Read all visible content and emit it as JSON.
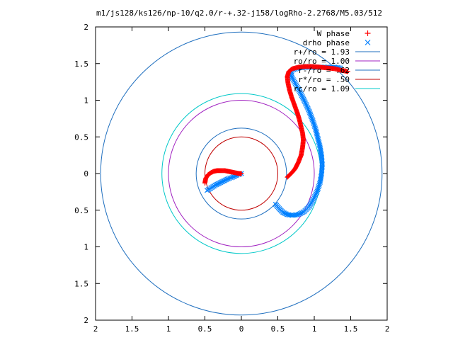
{
  "chart_data": {
    "type": "scatter",
    "title": "m1/js128/ks126/np-10/q2.0/r-+.32-j158/logRho-2.2768/M5.03/512",
    "xlim": [
      -2,
      2
    ],
    "ylim": [
      -2,
      2
    ],
    "x_tick_labels": [
      "2",
      "1.5",
      "1",
      "0.5",
      "0",
      "0.5",
      "1",
      "1.5",
      "2"
    ],
    "y_tick_labels": [
      "2",
      "1.5",
      "1",
      "0.5",
      "0",
      "0.5",
      "1",
      "1.5",
      "2"
    ],
    "grid": false,
    "legend_position": "top-right",
    "series": [
      {
        "name": "W phase",
        "marker": "+",
        "color": "#ff0000",
        "points": [
          [
            -0.5,
            -0.13
          ],
          [
            -0.49,
            -0.07
          ],
          [
            -0.46,
            -0.02
          ],
          [
            -0.42,
            0.01
          ],
          [
            -0.38,
            0.03
          ],
          [
            -0.33,
            0.04
          ],
          [
            -0.28,
            0.04
          ],
          [
            -0.23,
            0.04
          ],
          [
            -0.18,
            0.03
          ],
          [
            -0.13,
            0.02
          ],
          [
            -0.08,
            0.01
          ],
          [
            -0.03,
            0.0
          ],
          [
            0.0,
            0.0
          ],
          [
            0.63,
            -0.05
          ],
          [
            0.66,
            -0.02
          ],
          [
            0.7,
            0.02
          ],
          [
            0.74,
            0.07
          ],
          [
            0.78,
            0.15
          ],
          [
            0.82,
            0.25
          ],
          [
            0.84,
            0.36
          ],
          [
            0.85,
            0.46
          ],
          [
            0.84,
            0.55
          ],
          [
            0.82,
            0.63
          ],
          [
            0.8,
            0.72
          ],
          [
            0.77,
            0.82
          ],
          [
            0.73,
            0.93
          ],
          [
            0.69,
            1.04
          ],
          [
            0.66,
            1.14
          ],
          [
            0.64,
            1.23
          ],
          [
            0.63,
            1.32
          ],
          [
            0.65,
            1.39
          ],
          [
            0.7,
            1.43
          ],
          [
            0.78,
            1.45
          ],
          [
            0.88,
            1.46
          ],
          [
            0.98,
            1.46
          ],
          [
            1.08,
            1.45
          ],
          [
            1.18,
            1.44
          ],
          [
            1.28,
            1.43
          ],
          [
            1.36,
            1.41
          ],
          [
            1.42,
            1.4
          ],
          [
            1.46,
            1.39
          ]
        ]
      },
      {
        "name": "drho phase",
        "marker": "x",
        "color": "#0080ff",
        "points": [
          [
            -0.47,
            -0.23
          ],
          [
            -0.42,
            -0.2
          ],
          [
            -0.36,
            -0.16
          ],
          [
            -0.3,
            -0.13
          ],
          [
            -0.24,
            -0.1
          ],
          [
            -0.18,
            -0.07
          ],
          [
            -0.12,
            -0.05
          ],
          [
            -0.06,
            -0.02
          ],
          [
            0.0,
            0.0
          ],
          [
            0.47,
            -0.42
          ],
          [
            0.52,
            -0.48
          ],
          [
            0.57,
            -0.53
          ],
          [
            0.63,
            -0.56
          ],
          [
            0.7,
            -0.57
          ],
          [
            0.78,
            -0.56
          ],
          [
            0.86,
            -0.52
          ],
          [
            0.93,
            -0.45
          ],
          [
            0.99,
            -0.35
          ],
          [
            1.04,
            -0.24
          ],
          [
            1.08,
            -0.12
          ],
          [
            1.1,
            0.0
          ],
          [
            1.11,
            0.12
          ],
          [
            1.1,
            0.24
          ],
          [
            1.08,
            0.36
          ],
          [
            1.05,
            0.48
          ],
          [
            1.02,
            0.6
          ],
          [
            0.98,
            0.72
          ],
          [
            0.93,
            0.85
          ],
          [
            0.87,
            0.98
          ],
          [
            0.81,
            1.1
          ],
          [
            0.75,
            1.21
          ],
          [
            0.7,
            1.3
          ],
          [
            0.67,
            1.36
          ],
          [
            0.7,
            1.41
          ],
          [
            0.78,
            1.44
          ],
          [
            0.88,
            1.45
          ],
          [
            0.98,
            1.45
          ],
          [
            1.08,
            1.45
          ],
          [
            1.18,
            1.45
          ],
          [
            1.28,
            1.45
          ],
          [
            1.36,
            1.44
          ]
        ]
      }
    ],
    "circles": [
      {
        "name": "r+/ro = 1.93",
        "radius": 1.93,
        "color": "#1f6fbf"
      },
      {
        "name": "ro/ro = 1.00",
        "radius": 1.0,
        "color": "#a020c0"
      },
      {
        "name": "r-/ro = .62",
        "radius": 0.62,
        "color": "#1f6fbf"
      },
      {
        "name": "r*/ro = .50",
        "radius": 0.5,
        "color": "#c00000"
      },
      {
        "name": "rc/ro = 1.09",
        "radius": 1.09,
        "color": "#00c8c8"
      }
    ]
  }
}
